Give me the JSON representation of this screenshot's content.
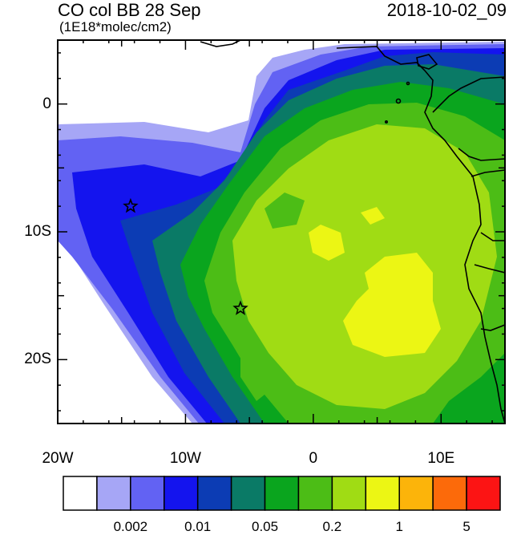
{
  "header": {
    "title": "CO col BB 28 Sep",
    "subtitle": "(1E18*molec/cm2)",
    "datetime": "2018-10-02_09"
  },
  "axes": {
    "x_ticks": [
      {
        "value": -20,
        "label": "20W"
      },
      {
        "value": -10,
        "label": "10W"
      },
      {
        "value": 0,
        "label": "0"
      },
      {
        "value": 10,
        "label": "10E"
      }
    ],
    "y_ticks": [
      {
        "value": 0,
        "label": "0"
      },
      {
        "value": -10,
        "label": "10S"
      },
      {
        "value": -20,
        "label": "20S"
      }
    ],
    "lon_range": [
      -20,
      15
    ],
    "lat_range": [
      -25,
      5
    ]
  },
  "markers": [
    {
      "name": "star",
      "lon": -14.3,
      "lat": -8.0
    },
    {
      "name": "star",
      "lon": -5.7,
      "lat": -16.0
    }
  ],
  "colorbar": {
    "colors": [
      "#ffffff",
      "#a6a6f6",
      "#6262f3",
      "#1414ee",
      "#0c3cb4",
      "#0a7a66",
      "#0aa51e",
      "#4cbd16",
      "#a0dc14",
      "#ecf614",
      "#fcb40a",
      "#fc6a0a",
      "#fc1414"
    ],
    "labels": [
      {
        "text": "0.002",
        "index": 2
      },
      {
        "text": "0.01",
        "index": 4
      },
      {
        "text": "0.05",
        "index": 6
      },
      {
        "text": "0.2",
        "index": 8
      },
      {
        "text": "1",
        "index": 10
      },
      {
        "text": "5",
        "index": 12
      }
    ]
  }
}
